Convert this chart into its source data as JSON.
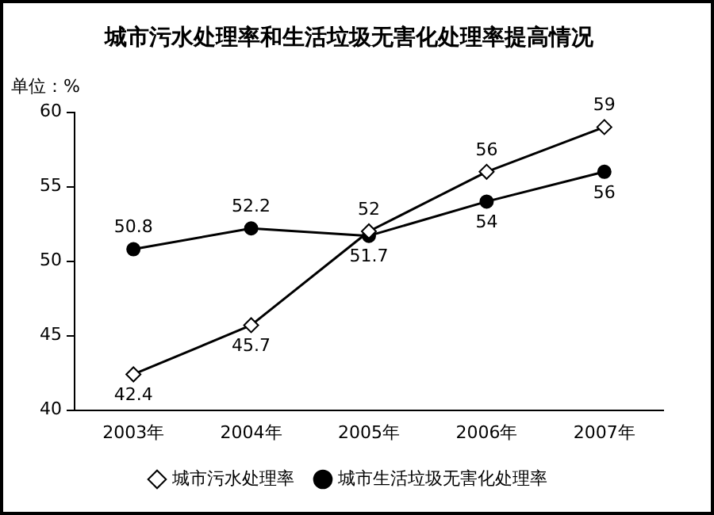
{
  "chart_data": {
    "type": "line",
    "title": "城市污水处理率和生活垃圾无害化处理率提高情况",
    "ylabel": "单位：%",
    "categories": [
      "2003年",
      "2004年",
      "2005年",
      "2006年",
      "2007年"
    ],
    "series": [
      {
        "name": "城市污水处理率",
        "color": "#000000",
        "marker": "diamond",
        "values": [
          42.4,
          45.7,
          52,
          56,
          59
        ]
      },
      {
        "name": "城市生活垃圾无害化处理率",
        "color": "#000000",
        "marker": "circle",
        "values": [
          50.8,
          52.2,
          51.7,
          54,
          56
        ]
      }
    ],
    "ylim": [
      40,
      60
    ],
    "yticks": [
      40,
      45,
      50,
      55,
      60
    ],
    "grid": false,
    "legend": "bottom",
    "data_labels": true,
    "line_style": "solid"
  }
}
